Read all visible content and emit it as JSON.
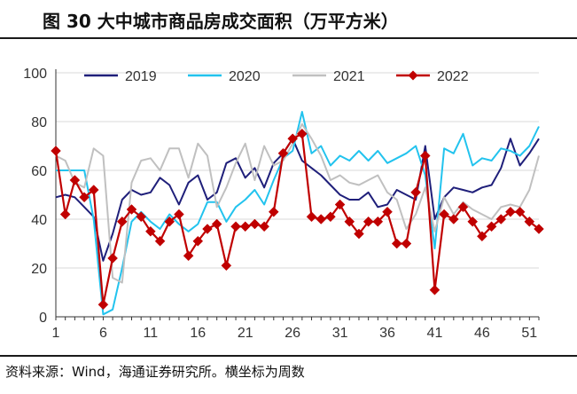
{
  "title": "图    30 大中城市商品房成交面积（万平方米）",
  "source": "资料来源：Wind，海通证券研究所。横坐标为周数",
  "chart_data": {
    "type": "line",
    "title": "大中城市商品房成交面积（万平方米）",
    "xlabel": "",
    "ylabel": "",
    "xlim": [
      1,
      52
    ],
    "ylim": [
      0,
      100
    ],
    "xticks": [
      1,
      6,
      11,
      16,
      21,
      26,
      31,
      36,
      41,
      46,
      51
    ],
    "yticks": [
      0,
      20,
      40,
      60,
      80,
      100
    ],
    "legend_position": "top",
    "series": [
      {
        "name": "2019",
        "color": "#1f1f7a",
        "marker": "none",
        "x": [
          1,
          2,
          3,
          4,
          5,
          6,
          7,
          8,
          9,
          10,
          11,
          12,
          13,
          14,
          15,
          16,
          17,
          18,
          19,
          20,
          21,
          22,
          23,
          24,
          25,
          26,
          27,
          28,
          29,
          30,
          31,
          32,
          33,
          34,
          35,
          36,
          37,
          38,
          39,
          40,
          41,
          42,
          43,
          44,
          45,
          46,
          47,
          48,
          49,
          50,
          51,
          52
        ],
        "values": [
          49,
          50,
          49,
          45,
          41,
          23,
          34,
          48,
          52,
          50,
          51,
          57,
          54,
          46,
          55,
          58,
          48,
          51,
          63,
          65,
          57,
          61,
          53,
          63,
          67,
          73,
          64,
          61,
          58,
          54,
          50,
          48,
          48,
          51,
          45,
          46,
          52,
          50,
          48,
          70,
          40,
          49,
          53,
          52,
          51,
          53,
          54,
          61,
          73,
          62,
          67,
          73
        ]
      },
      {
        "name": "2020",
        "color": "#22c3ee",
        "marker": "none",
        "x": [
          1,
          2,
          3,
          4,
          5,
          6,
          7,
          8,
          9,
          10,
          11,
          12,
          13,
          14,
          15,
          16,
          17,
          18,
          19,
          20,
          21,
          22,
          23,
          24,
          25,
          26,
          27,
          28,
          29,
          30,
          31,
          32,
          33,
          34,
          35,
          36,
          37,
          38,
          39,
          40,
          41,
          42,
          43,
          44,
          45,
          46,
          47,
          48,
          49,
          50,
          51,
          52
        ],
        "values": [
          60,
          60,
          60,
          60,
          40,
          1,
          3,
          20,
          39,
          43,
          39,
          36,
          42,
          38,
          35,
          38,
          47,
          47,
          39,
          45,
          48,
          52,
          46,
          56,
          65,
          68,
          84,
          67,
          70,
          62,
          66,
          64,
          68,
          64,
          68,
          63,
          65,
          67,
          70,
          58,
          28,
          69,
          67,
          75,
          62,
          65,
          64,
          69,
          68,
          66,
          70,
          78
        ]
      },
      {
        "name": "2021",
        "color": "#c0c0c0",
        "marker": "none",
        "x": [
          1,
          2,
          3,
          4,
          5,
          6,
          7,
          8,
          9,
          10,
          11,
          12,
          13,
          14,
          15,
          16,
          17,
          18,
          19,
          20,
          21,
          22,
          23,
          24,
          25,
          26,
          27,
          28,
          29,
          30,
          31,
          32,
          33,
          34,
          35,
          36,
          37,
          38,
          39,
          40,
          41,
          42,
          43,
          44,
          45,
          46,
          47,
          48,
          49,
          50,
          51,
          52
        ],
        "values": [
          66,
          64,
          55,
          53,
          69,
          66,
          16,
          14,
          55,
          64,
          65,
          60,
          69,
          69,
          57,
          71,
          66,
          45,
          53,
          63,
          71,
          56,
          70,
          62,
          64,
          71,
          79,
          73,
          66,
          56,
          58,
          55,
          54,
          56,
          58,
          51,
          48,
          36,
          42,
          53,
          35,
          49,
          42,
          47,
          44,
          42,
          40,
          45,
          46,
          45,
          52,
          66
        ]
      },
      {
        "name": "2022",
        "color": "#c00000",
        "marker": "diamond",
        "x": [
          1,
          2,
          3,
          4,
          5,
          6,
          7,
          8,
          9,
          10,
          11,
          12,
          13,
          14,
          15,
          16,
          17,
          18,
          19,
          20,
          21,
          22,
          23,
          24,
          25,
          26,
          27,
          28,
          29,
          30,
          31,
          32,
          33,
          34,
          35,
          36,
          37,
          38,
          39,
          40,
          41,
          42,
          43,
          44,
          45,
          46,
          47,
          48,
          49,
          50,
          51,
          52
        ],
        "values": [
          68,
          42,
          56,
          49,
          52,
          5,
          24,
          39,
          44,
          41,
          35,
          31,
          39,
          42,
          25,
          31,
          36,
          38,
          21,
          37,
          37,
          38,
          37,
          43,
          67,
          73,
          75,
          41,
          40,
          41,
          46,
          39,
          34,
          39,
          39,
          43,
          30,
          30,
          51,
          66,
          11,
          42,
          40,
          45,
          39,
          33,
          37,
          40,
          43,
          43,
          39,
          36
        ]
      }
    ]
  }
}
